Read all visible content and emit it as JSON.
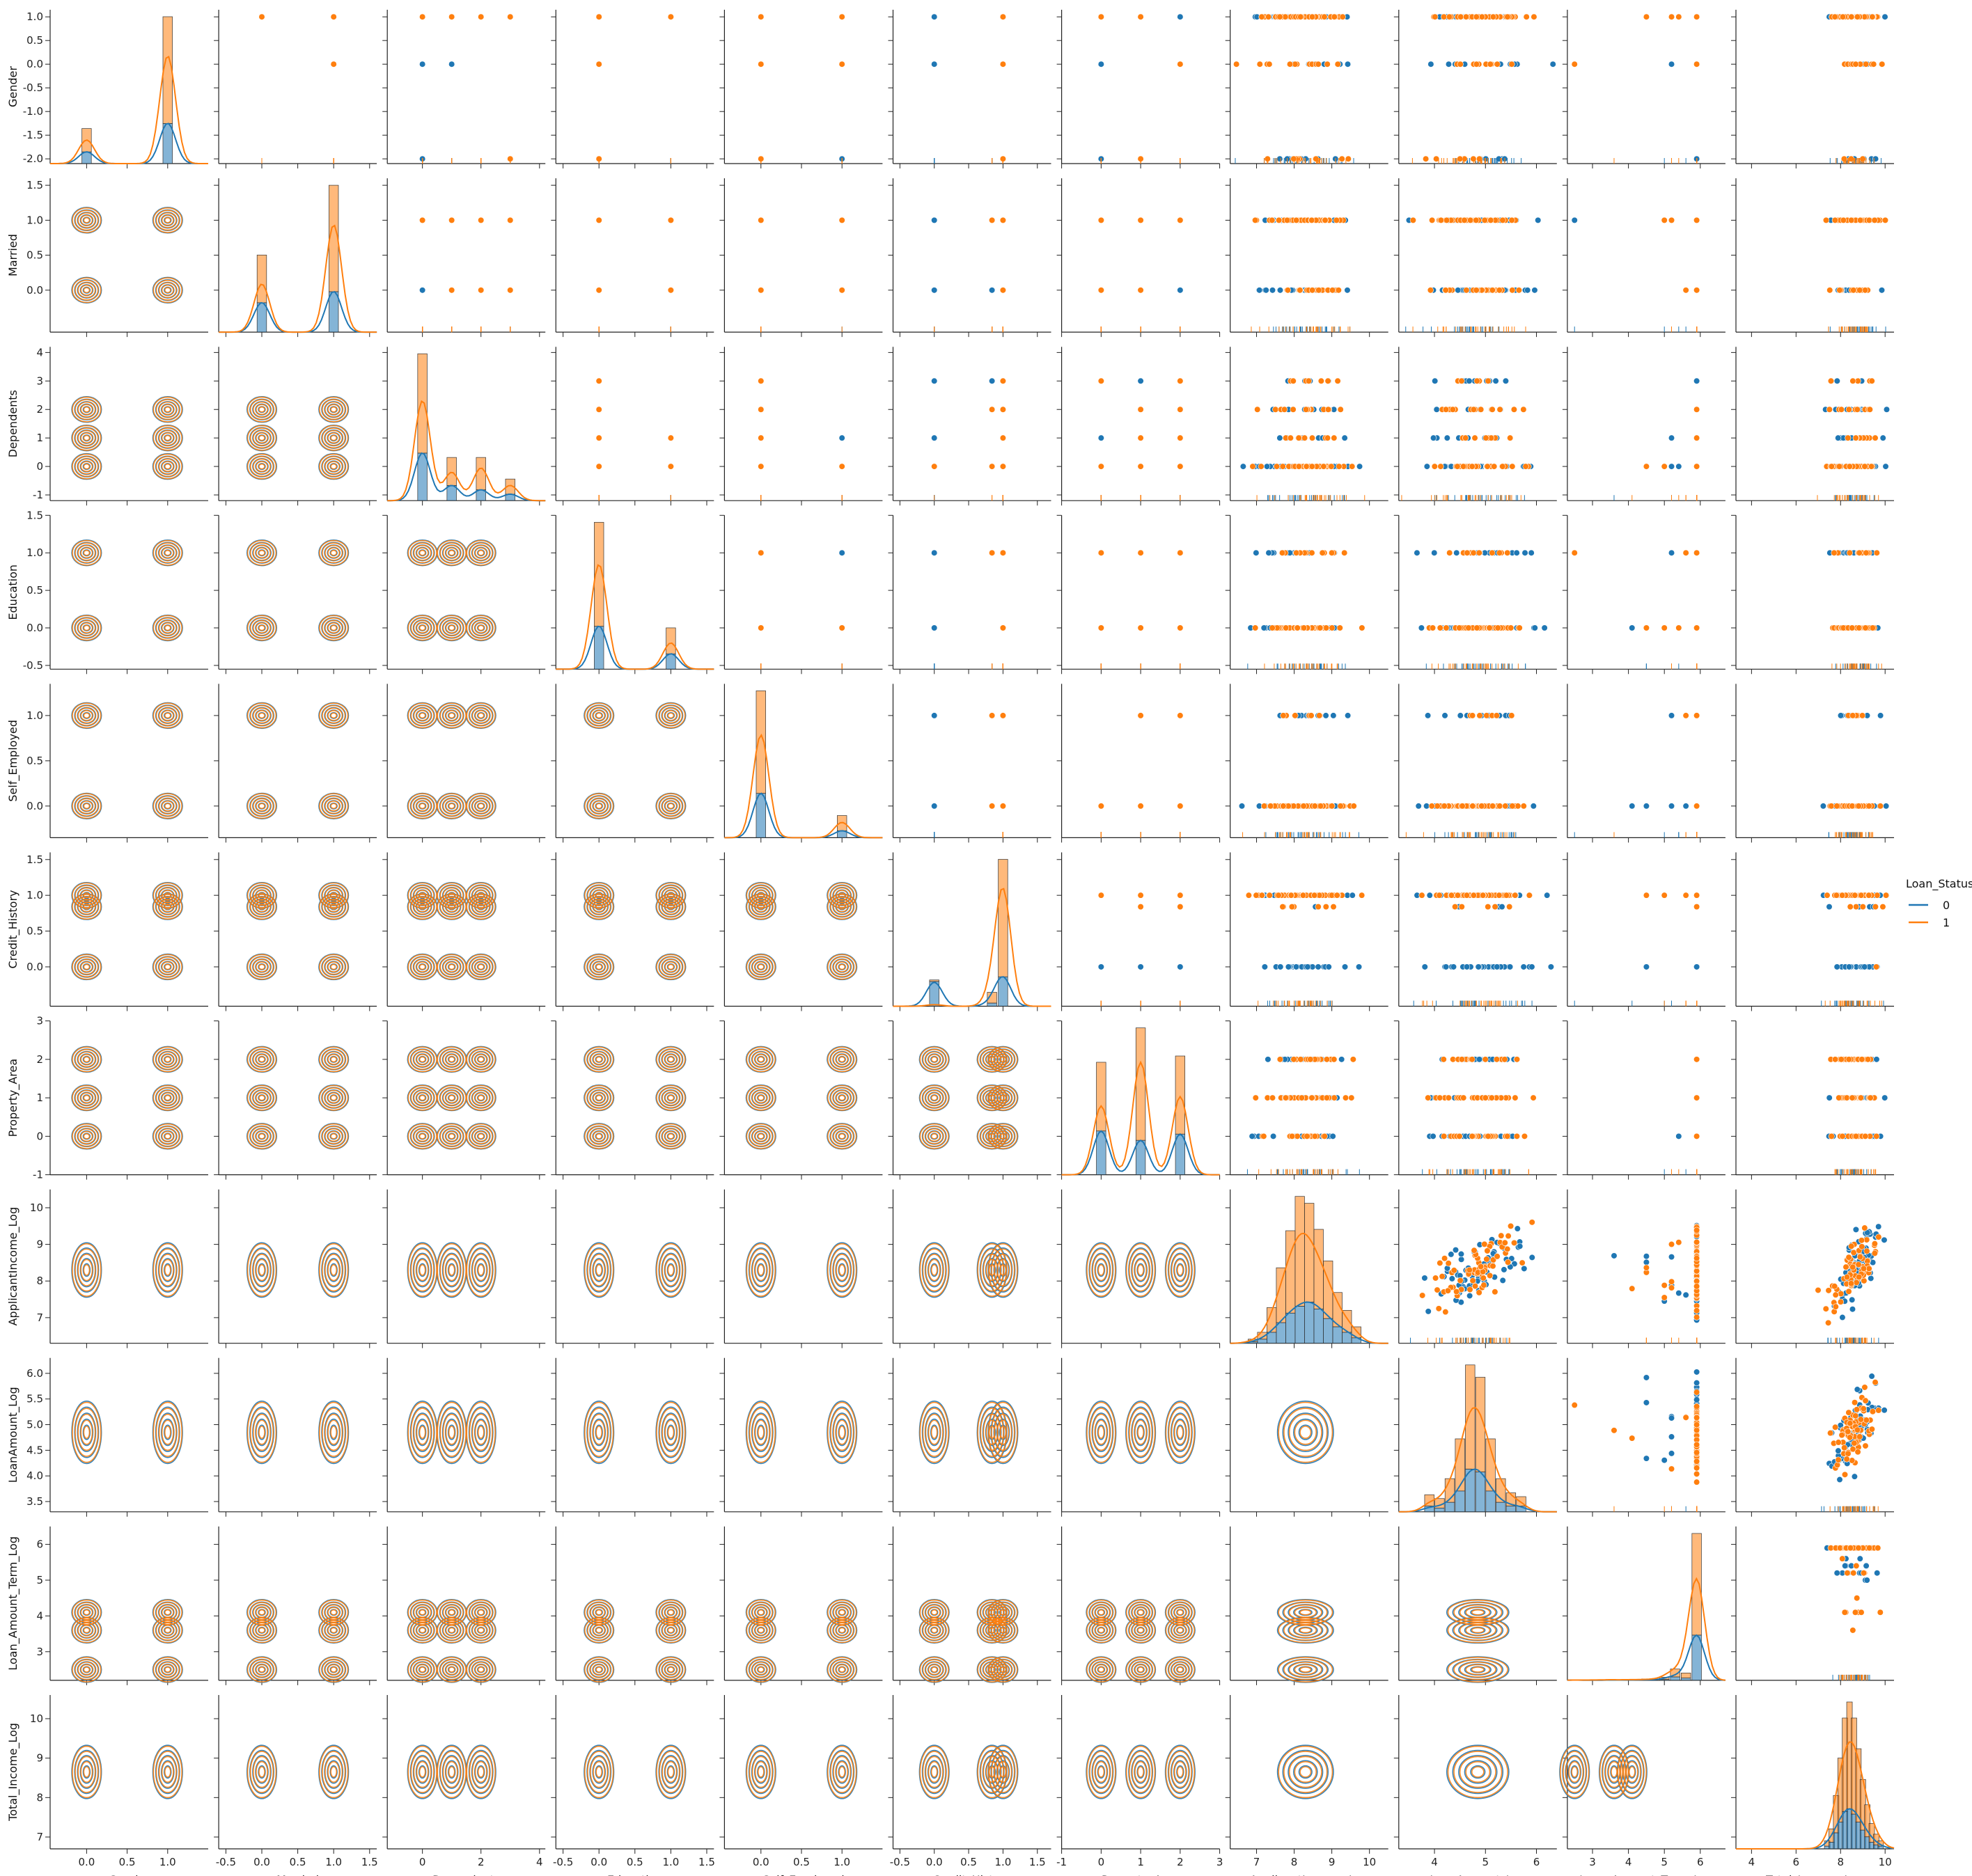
{
  "chart_data": {
    "type": "pairplot",
    "hue": "Loan_Status",
    "upper": "scatter",
    "lower": "kde",
    "diag": "histogram with kde",
    "rug": true,
    "variables": [
      "Gender",
      "Married",
      "Dependents",
      "Education",
      "Self_Employed",
      "Credit_History",
      "Property_Area",
      "ApplicantIncome_Log",
      "LoanAmount_Log",
      "Loan_Amount_Term_Log",
      "Total_Income_Log"
    ],
    "legend": {
      "title": "Loan_Status",
      "placement": "center-right",
      "entries": [
        {
          "label": "0",
          "color": "#1f77b4"
        },
        {
          "label": "1",
          "color": "#ff7f0e"
        }
      ]
    },
    "axes": {
      "Gender": {
        "range": [
          -2.1,
          1.15
        ],
        "x_range": [
          -0.45,
          1.5
        ],
        "y_ticks": [
          "-2.0",
          "-1.5",
          "-1.0",
          "-0.5",
          "0.0",
          "0.5",
          "1.0"
        ],
        "x_ticks": [
          "0.0",
          "0.5",
          "1.0"
        ],
        "levels": [
          -2.0,
          0.0,
          1.0
        ],
        "weights0": [
          0.12,
          0.15,
          0.73
        ],
        "weights1": [
          0.08,
          0.17,
          0.75
        ]
      },
      "Married": {
        "range": [
          -0.6,
          1.6
        ],
        "x_range": [
          -0.6,
          1.6
        ],
        "y_ticks": [
          "0.0",
          "0.5",
          "1.0",
          "1.5"
        ],
        "x_ticks": [
          "-0.5",
          "0.0",
          "0.5",
          "1.0",
          "1.5"
        ],
        "levels": [
          0.0,
          1.0
        ],
        "weights0": [
          0.42,
          0.58
        ],
        "weights1": [
          0.3,
          0.7
        ]
      },
      "Dependents": {
        "range": [
          -1.2,
          4.2
        ],
        "x_range": [
          -1.2,
          4.2
        ],
        "y_ticks": [
          "-1",
          "0",
          "1",
          "2",
          "3",
          "4"
        ],
        "x_ticks": [
          "0",
          "2",
          "4"
        ],
        "levels": [
          0,
          1,
          2,
          3
        ],
        "weights0": [
          0.57,
          0.17,
          0.16,
          0.1
        ],
        "weights1": [
          0.56,
          0.16,
          0.19,
          0.09
        ]
      },
      "Education": {
        "range": [
          -0.55,
          1.5
        ],
        "x_range": [
          -0.6,
          1.6
        ],
        "y_ticks": [
          "-0.5",
          "0.0",
          "0.5",
          "1.0",
          "1.5"
        ],
        "x_ticks": [
          "-0.5",
          "0.0",
          "0.5",
          "1.0",
          "1.5"
        ],
        "levels": [
          0.0,
          1.0
        ],
        "weights0": [
          0.75,
          0.25
        ],
        "weights1": [
          0.8,
          0.2
        ]
      },
      "Self_Employed": {
        "range": [
          -0.35,
          1.35
        ],
        "x_range": [
          -0.45,
          1.5
        ],
        "y_ticks": [
          "0.0",
          "0.5",
          "1.0"
        ],
        "x_ticks": [
          "0.0",
          "0.5",
          "1.0"
        ],
        "levels": [
          0.0,
          1.0
        ],
        "weights0": [
          0.86,
          0.14
        ],
        "weights1": [
          0.87,
          0.13
        ]
      },
      "Credit_History": {
        "range": [
          -0.55,
          1.6
        ],
        "x_range": [
          -0.6,
          1.7
        ],
        "y_ticks": [
          "0.0",
          "0.5",
          "1.0",
          "1.5"
        ],
        "x_ticks": [
          "-0.5",
          "0.0",
          "0.5",
          "1.0",
          "1.5"
        ],
        "levels": [
          0.0,
          0.84,
          1.0
        ],
        "weights0": [
          0.45,
          0.05,
          0.5
        ],
        "weights1": [
          0.02,
          0.08,
          0.9
        ]
      },
      "Property_Area": {
        "range": [
          -1.0,
          3.0
        ],
        "x_range": [
          -1.0,
          3.0
        ],
        "y_ticks": [
          "-1",
          "0",
          "1",
          "2",
          "3"
        ],
        "x_ticks": [
          "-1",
          "0",
          "1",
          "2",
          "3"
        ],
        "levels": [
          0,
          1,
          2
        ],
        "weights0": [
          0.36,
          0.3,
          0.34
        ],
        "weights1": [
          0.27,
          0.43,
          0.3
        ]
      },
      "ApplicantIncome_Log": {
        "range": [
          6.3,
          10.5
        ],
        "x_range": [
          6.3,
          10.5
        ],
        "y_ticks": [
          "7",
          "8",
          "9",
          "10"
        ],
        "x_ticks": [
          "7",
          "8",
          "9",
          "10"
        ],
        "mean": 8.3,
        "sd": 0.55
      },
      "LoanAmount_Log": {
        "range": [
          3.3,
          6.3
        ],
        "x_range": [
          3.3,
          6.4
        ],
        "y_ticks": [
          "3.5",
          "4.0",
          "4.5",
          "5.0",
          "5.5",
          "6.0"
        ],
        "x_ticks": [
          "4",
          "5",
          "6"
        ],
        "mean": 4.85,
        "sd": 0.45
      },
      "Loan_Amount_Term_Log": {
        "range": [
          2.2,
          6.5
        ],
        "x_range": [
          2.3,
          6.7
        ],
        "y_ticks": [
          "3",
          "4",
          "5",
          "6"
        ],
        "x_ticks": [
          "3",
          "4",
          "5",
          "6"
        ],
        "levels": [
          2.5,
          3.6,
          4.1,
          4.5,
          5.0,
          5.2,
          5.4,
          5.6,
          5.9
        ],
        "weights0": [
          0.005,
          0.005,
          0.005,
          0.01,
          0.01,
          0.07,
          0.02,
          0.02,
          0.855
        ],
        "weights1": [
          0.005,
          0.01,
          0.01,
          0.01,
          0.02,
          0.06,
          0.02,
          0.02,
          0.845
        ]
      },
      "Total_Income_Log": {
        "range": [
          6.7,
          10.6
        ],
        "x_range": [
          3.3,
          10.4
        ],
        "y_ticks": [
          "7",
          "8",
          "9",
          "10"
        ],
        "x_ticks": [
          "4",
          "6",
          "8",
          "10"
        ],
        "mean": 8.65,
        "sd": 0.5
      }
    },
    "diag_bars": {
      "Gender": {
        "bins": [
          -2.0,
          0.0,
          1.0
        ],
        "counts0": [
          20,
          35,
          120
        ],
        "counts1": [
          30,
          70,
          320
        ]
      },
      "Married": {
        "bins": [
          0.0,
          1.0
        ],
        "counts0": [
          80,
          110
        ],
        "counts1": [
          130,
          290
        ]
      },
      "Dependents": {
        "bins": [
          0,
          1,
          2,
          3
        ],
        "counts0": [
          110,
          35,
          25,
          15
        ],
        "counts1": [
          230,
          65,
          75,
          35
        ]
      },
      "Education": {
        "bins": [
          0.0,
          1.0
        ],
        "counts0": [
          140,
          50
        ],
        "counts1": [
          340,
          85
        ]
      },
      "Self_Employed": {
        "bins": [
          0.0,
          1.0
        ],
        "counts0": [
          160,
          25
        ],
        "counts1": [
          370,
          55
        ]
      },
      "Credit_History": {
        "bins": [
          0.0,
          0.84,
          1.0
        ],
        "counts0": [
          80,
          10,
          95
        ],
        "counts1": [
          5,
          35,
          380
        ]
      },
      "Property_Area": {
        "bins": [
          0,
          1,
          2
        ],
        "counts0": [
          70,
          55,
          65
        ],
        "counts1": [
          110,
          180,
          125
        ]
      },
      "ApplicantIncome_Log": {
        "bins": [
          6.9,
          7.15,
          7.4,
          7.65,
          7.9,
          8.15,
          8.4,
          8.65,
          8.9,
          9.15,
          9.4,
          9.65
        ],
        "counts0": [
          1,
          3,
          8,
          15,
          22,
          27,
          30,
          25,
          18,
          12,
          8,
          4
        ],
        "counts1": [
          2,
          5,
          18,
          40,
          60,
          80,
          72,
          58,
          42,
          25,
          16,
          8
        ]
      },
      "LoanAmount_Log": {
        "bins": [
          3.9,
          4.1,
          4.3,
          4.5,
          4.7,
          4.9,
          5.1,
          5.3,
          5.5,
          5.7
        ],
        "counts0": [
          6,
          4,
          10,
          22,
          45,
          42,
          22,
          10,
          6,
          6
        ],
        "counts1": [
          12,
          10,
          25,
          55,
          110,
          100,
          55,
          25,
          14,
          10
        ]
      },
      "Loan_Amount_Term_Log": {
        "bins": [
          2.5,
          3.0,
          3.5,
          4.0,
          4.5,
          5.0,
          5.3,
          5.6,
          5.9
        ],
        "counts0": [
          1,
          0,
          1,
          1,
          2,
          3,
          12,
          8,
          160
        ],
        "counts1": [
          1,
          1,
          2,
          2,
          3,
          8,
          28,
          18,
          360
        ]
      },
      "Total_Income_Log": {
        "bins": [
          7.4,
          7.6,
          7.8,
          8.0,
          8.2,
          8.4,
          8.6,
          8.8,
          9.0,
          9.2,
          9.4,
          9.6,
          9.8
        ],
        "counts0": [
          2,
          5,
          12,
          20,
          28,
          30,
          26,
          20,
          14,
          9,
          5,
          3,
          2
        ],
        "counts1": [
          4,
          10,
          28,
          48,
          70,
          80,
          72,
          55,
          38,
          24,
          14,
          8,
          4
        ]
      }
    }
  }
}
